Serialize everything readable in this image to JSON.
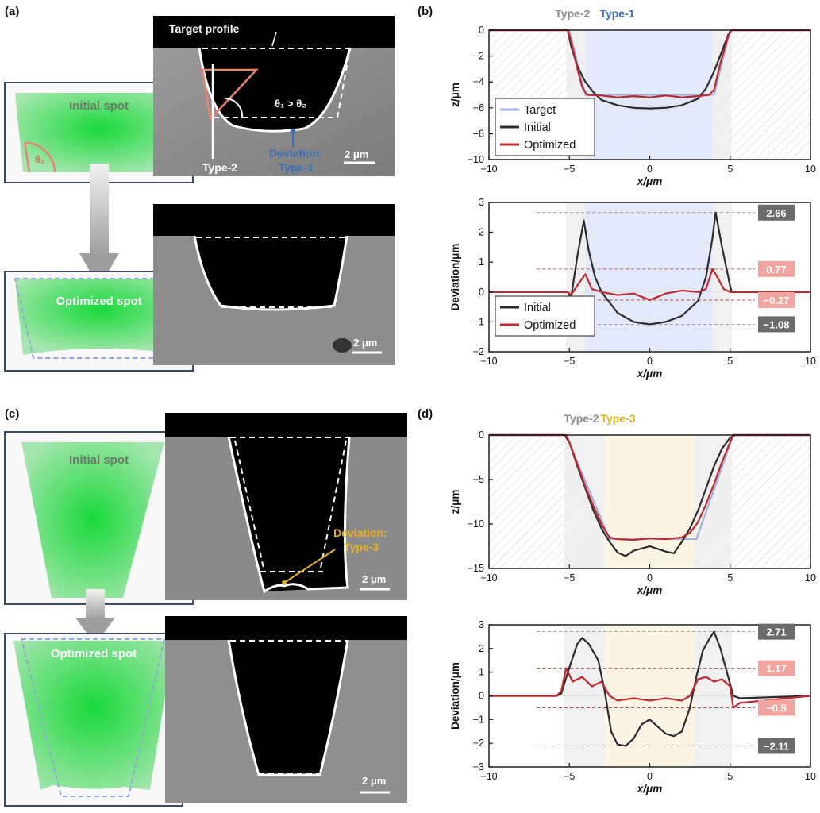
{
  "panels": {
    "a": {
      "label": "(a)"
    },
    "b": {
      "label": "(b)"
    },
    "c": {
      "label": "(c)"
    },
    "d": {
      "label": "(d)"
    }
  },
  "spots": {
    "initial_label": "Initial spot",
    "optimized_label": "Optimized spot",
    "theta2": "θ₂"
  },
  "sem_a": {
    "target_profile": "Target profile",
    "angle_text": "θ₁ > θ₂",
    "type2": "Type-2",
    "deviation": "Deviation:",
    "deviation_type": "Type-1",
    "scale": "2 μm",
    "scale2": "2 μm"
  },
  "sem_c": {
    "deviation": "Deviation:",
    "deviation_type": "Type-3",
    "scale": "2 μm",
    "scale2": "2 μm"
  },
  "colors": {
    "target": "#9db3de",
    "initial": "#2b2b2b",
    "optimized": "#c0282d",
    "type1_band": "#dbe5f7",
    "type2_band": "#ececec",
    "type3_band": "#fbf3dc",
    "type1_text": "#3a6fb5",
    "type2_text": "#8a8a8a",
    "type3_text": "#e6b320",
    "badge_dark": "#6b6b6b",
    "badge_light": "#f2a59f"
  },
  "chart_data": [
    {
      "id": "b-top",
      "type": "line",
      "band_labels": [
        "Type-2",
        "Type-1"
      ],
      "xlabel": "x/μm",
      "ylabel": "z/μm",
      "xlim": [
        -10,
        10
      ],
      "ylim": [
        -10,
        0
      ],
      "xticks": [
        -10,
        -5,
        0,
        5,
        10
      ],
      "yticks": [
        0,
        -2,
        -4,
        -6,
        -8,
        -10
      ],
      "bands": [
        {
          "kind": "type2",
          "from": -5.2,
          "to": -4.0
        },
        {
          "kind": "type1",
          "from": -4.0,
          "to": 3.9
        },
        {
          "kind": "type2",
          "from": 3.9,
          "to": 5.1
        }
      ],
      "series": [
        {
          "name": "Target",
          "color_key": "target",
          "x": [
            -10,
            -5,
            -4,
            4,
            5,
            10
          ],
          "y": [
            0,
            0,
            -5,
            -5,
            0,
            0
          ]
        },
        {
          "name": "Initial",
          "color_key": "initial",
          "x": [
            -10,
            -5.1,
            -4.9,
            -4.5,
            -4,
            -3.5,
            -3,
            -2,
            -1,
            0,
            1,
            2,
            3,
            3.5,
            4,
            4.5,
            4.9,
            5.1,
            10
          ],
          "y": [
            0,
            0,
            -1.2,
            -2.8,
            -4.0,
            -4.8,
            -5.4,
            -5.8,
            -6.0,
            -6.05,
            -6.0,
            -5.8,
            -5.3,
            -4.5,
            -3.2,
            -1.6,
            -0.3,
            0,
            0
          ]
        },
        {
          "name": "Optimized",
          "color_key": "optimized",
          "x": [
            -10,
            -5.1,
            -4.9,
            -4.5,
            -4.2,
            -3.9,
            -3,
            -2,
            -1,
            0,
            1,
            2,
            3,
            3.7,
            4.0,
            4.4,
            4.9,
            5.1,
            10
          ],
          "y": [
            0,
            0,
            -0.8,
            -3.0,
            -4.4,
            -5.0,
            -5.05,
            -5.2,
            -5.1,
            -5.2,
            -5.05,
            -5.2,
            -5.1,
            -5.0,
            -4.6,
            -2.5,
            -0.4,
            0,
            0
          ]
        }
      ],
      "legend_position": "bottom-left"
    },
    {
      "id": "b-bottom",
      "type": "line",
      "xlabel": "x/μm",
      "ylabel": "Deviation/μm",
      "xlim": [
        -10,
        10
      ],
      "ylim": [
        -2,
        3
      ],
      "xticks": [
        -10,
        -5,
        0,
        5,
        10
      ],
      "yticks": [
        3,
        2,
        1,
        0,
        -1,
        -2
      ],
      "bands": [
        {
          "kind": "type2",
          "from": -5.2,
          "to": -4.0
        },
        {
          "kind": "type1",
          "from": -4.0,
          "to": 3.9
        },
        {
          "kind": "type2",
          "from": 3.9,
          "to": 5.1
        }
      ],
      "series": [
        {
          "name": "Initial",
          "color_key": "initial",
          "x": [
            -10,
            -5.1,
            -4.9,
            -4.5,
            -4.1,
            -3.8,
            -3.4,
            -3,
            -2,
            -1,
            0,
            1,
            2,
            3,
            3.5,
            3.9,
            4.1,
            4.5,
            5.0,
            5.1,
            10
          ],
          "y": [
            0,
            0,
            -0.2,
            1.2,
            2.4,
            1.4,
            0.5,
            0,
            -0.7,
            -1.0,
            -1.08,
            -1.0,
            -0.8,
            -0.3,
            0.5,
            1.8,
            2.66,
            1.5,
            0.2,
            0,
            0
          ]
        },
        {
          "name": "Optimized",
          "color_key": "optimized",
          "x": [
            -10,
            -5.1,
            -4.9,
            -4.4,
            -4.0,
            -3.6,
            -3,
            -2,
            -1,
            0,
            1,
            2,
            3,
            3.5,
            3.9,
            4.2,
            4.6,
            5.0,
            5.1,
            10
          ],
          "y": [
            0,
            0,
            -0.1,
            0.3,
            0.6,
            0.1,
            0.0,
            -0.1,
            -0.05,
            -0.27,
            -0.05,
            0.05,
            0.0,
            0.1,
            0.77,
            0.5,
            0.1,
            0.0,
            0,
            0
          ]
        }
      ],
      "annotations": [
        {
          "value": "2.66",
          "y": 2.66,
          "style": "dark"
        },
        {
          "value": "0.77",
          "y": 0.77,
          "style": "light"
        },
        {
          "value": "−0.27",
          "y": -0.27,
          "style": "light"
        },
        {
          "value": "−1.08",
          "y": -1.08,
          "style": "dark"
        }
      ],
      "legend_position": "bottom-left"
    },
    {
      "id": "d-top",
      "type": "line",
      "band_labels": [
        "Type-2",
        "Type-3"
      ],
      "xlabel": "x/μm",
      "ylabel": "z/μm",
      "xlim": [
        -10,
        10
      ],
      "ylim": [
        -15,
        0
      ],
      "xticks": [
        -10,
        -5,
        0,
        5,
        10
      ],
      "yticks": [
        0,
        -5,
        -10,
        -15
      ],
      "bands": [
        {
          "kind": "type2",
          "from": -5.3,
          "to": -2.8
        },
        {
          "kind": "type3",
          "from": -2.8,
          "to": 2.8
        },
        {
          "kind": "type2",
          "from": 2.8,
          "to": 5.1
        }
      ],
      "series": [
        {
          "name": "Target",
          "color_key": "target",
          "x": [
            -10,
            -5.2,
            -2.5,
            2.9,
            5.2,
            10
          ],
          "y": [
            0,
            0,
            -11.7,
            -11.7,
            0,
            0
          ]
        },
        {
          "name": "Initial",
          "color_key": "initial",
          "x": [
            -10,
            -5.3,
            -5,
            -4.5,
            -4,
            -3.5,
            -3,
            -2.5,
            -2,
            -1.5,
            -1,
            0,
            1,
            1.5,
            2,
            2.5,
            3,
            3.5,
            4,
            4.5,
            5,
            5.3,
            10
          ],
          "y": [
            0,
            0,
            -0.8,
            -3.5,
            -6.0,
            -8.5,
            -10.5,
            -12.0,
            -13.2,
            -13.6,
            -13.0,
            -12.5,
            -13.1,
            -13.3,
            -12.0,
            -10.5,
            -8.5,
            -6.0,
            -3.5,
            -1.5,
            -0.3,
            0,
            0
          ]
        },
        {
          "name": "Optimized",
          "color_key": "optimized",
          "x": [
            -10,
            -5.2,
            -5,
            -4.5,
            -4,
            -3.5,
            -3,
            -2.5,
            -2,
            -1,
            0,
            1,
            2,
            2.5,
            3,
            3.5,
            4,
            4.5,
            5,
            5.2,
            10
          ],
          "y": [
            0,
            0,
            -0.8,
            -3.3,
            -5.8,
            -8.0,
            -10.0,
            -11.5,
            -11.7,
            -11.8,
            -11.6,
            -11.7,
            -11.5,
            -11.0,
            -9.8,
            -7.8,
            -5.5,
            -3.0,
            -0.8,
            0,
            0
          ]
        }
      ]
    },
    {
      "id": "d-bottom",
      "type": "line",
      "xlabel": "x/μm",
      "ylabel": "Deviation/μm",
      "xlim": [
        -10,
        10
      ],
      "ylim": [
        -3,
        3
      ],
      "xticks": [
        -10,
        -5,
        0,
        5,
        10
      ],
      "yticks": [
        3,
        2,
        1,
        0,
        -1,
        -2,
        -3
      ],
      "bands": [
        {
          "kind": "type2",
          "from": -5.3,
          "to": -2.8
        },
        {
          "kind": "type3",
          "from": -2.8,
          "to": 2.8
        },
        {
          "kind": "type2",
          "from": 2.8,
          "to": 5.1
        }
      ],
      "series": [
        {
          "name": "Initial",
          "color_key": "initial",
          "x": [
            -10,
            -5.8,
            -5.5,
            -5,
            -4.5,
            -4.2,
            -3.8,
            -3.2,
            -2.8,
            -2.4,
            -2,
            -1.5,
            -1,
            -0.5,
            0,
            0.5,
            1,
            1.5,
            2,
            2.5,
            2.9,
            3.3,
            3.7,
            4.0,
            4.4,
            4.8,
            5.2,
            5.6,
            10
          ],
          "y": [
            0,
            0,
            0.1,
            1.2,
            2.2,
            2.45,
            2.2,
            1.5,
            0.2,
            -1.5,
            -2.05,
            -2.11,
            -1.8,
            -1.2,
            -1.0,
            -1.3,
            -1.6,
            -1.7,
            -1.5,
            -0.5,
            0.8,
            1.9,
            2.4,
            2.71,
            2.0,
            1.0,
            0.0,
            -0.1,
            0
          ]
        },
        {
          "name": "Optimized",
          "color_key": "optimized",
          "x": [
            -10,
            -5.8,
            -5.5,
            -5.2,
            -4.8,
            -4.2,
            -3.6,
            -3.0,
            -2.5,
            -2,
            -1,
            0,
            1,
            2,
            2.5,
            3.0,
            3.5,
            4.0,
            4.5,
            5.0,
            5.2,
            5.6,
            10
          ],
          "y": [
            0,
            0,
            0.2,
            1.17,
            0.6,
            0.8,
            0.4,
            0.6,
            0.0,
            -0.2,
            -0.1,
            -0.2,
            -0.1,
            -0.2,
            0.0,
            0.7,
            0.8,
            0.6,
            0.7,
            0.4,
            -0.5,
            -0.3,
            0
          ]
        }
      ],
      "annotations": [
        {
          "value": "2.71",
          "y": 2.71,
          "style": "dark"
        },
        {
          "value": "1.17",
          "y": 1.17,
          "style": "light"
        },
        {
          "value": "−0.5",
          "y": -0.5,
          "style": "light"
        },
        {
          "value": "−2.11",
          "y": -2.11,
          "style": "dark"
        }
      ]
    }
  ]
}
